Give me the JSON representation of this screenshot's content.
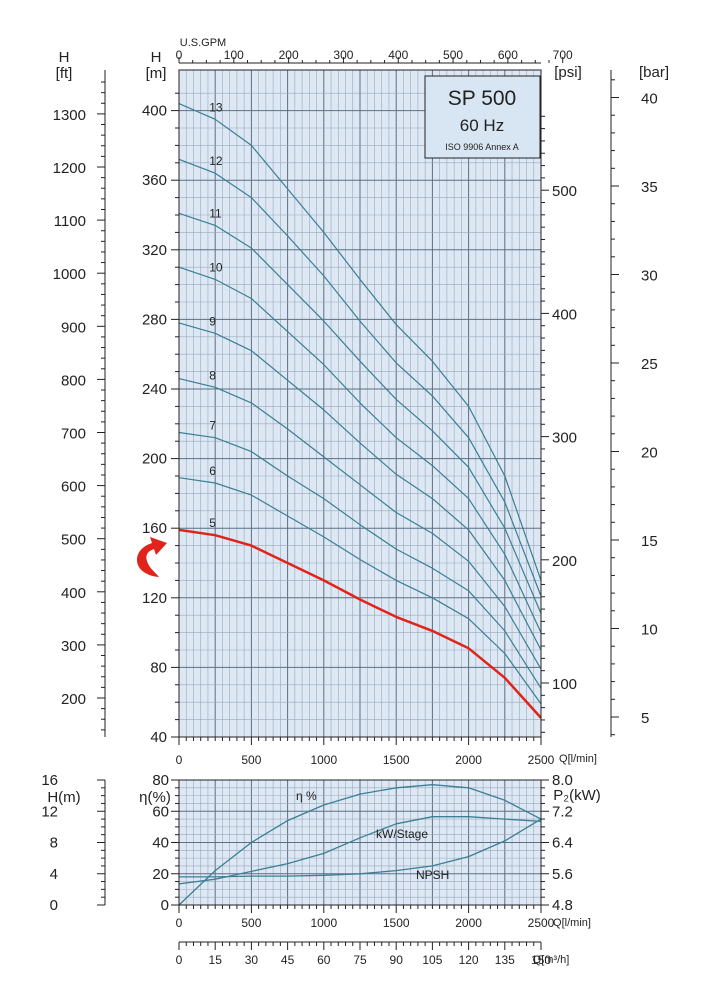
{
  "chart_data": [
    {
      "type": "line",
      "title_box": {
        "model": "SP 500",
        "frequency": "60 Hz",
        "standard": "ISO 9906 Annex A"
      },
      "x_axis": {
        "label": "Q[l/min]",
        "range": [
          0,
          2500
        ],
        "ticks": [
          "0",
          "500",
          "1000",
          "1500",
          "2000",
          "2500"
        ]
      },
      "top_axis": {
        "label": "U.S.GPM",
        "range": [
          0,
          700
        ],
        "ticks": [
          "0",
          "100",
          "200",
          "300",
          "400",
          "500",
          "600",
          "700"
        ]
      },
      "y_axis_m": {
        "label": "H\n[m]",
        "range": [
          40,
          410
        ],
        "ticks": [
          "40",
          "80",
          "120",
          "160",
          "200",
          "240",
          "280",
          "320",
          "360",
          "400"
        ]
      },
      "y_axis_ft": {
        "label": "H\n[ft]",
        "ticks": [
          "200",
          "300",
          "400",
          "500",
          "600",
          "700",
          "800",
          "900",
          "1000",
          "1100",
          "1200",
          "1300"
        ]
      },
      "y_axis_psi": {
        "label": "[psi]",
        "ticks": [
          "100",
          "200",
          "300",
          "400",
          "500"
        ]
      },
      "y_axis_bar": {
        "label": "[bar]",
        "ticks": [
          "5",
          "10",
          "15",
          "20",
          "25",
          "30",
          "35",
          "40"
        ]
      },
      "grid": true,
      "highlight_stage": "5",
      "highlight_color": "#e0241b",
      "curve_color": "#3a7f93",
      "x": [
        0,
        250,
        500,
        750,
        1000,
        1250,
        1500,
        1750,
        2000,
        2250,
        2500
      ],
      "series": [
        {
          "name": "5",
          "values": [
            159,
            156,
            150,
            140,
            130,
            119,
            109,
            101,
            91,
            74,
            51
          ]
        },
        {
          "name": "6",
          "values": [
            189,
            186,
            179,
            167,
            155,
            142,
            130,
            120,
            108,
            88,
            59
          ]
        },
        {
          "name": "7",
          "values": [
            215,
            212,
            204,
            190,
            177,
            162,
            148,
            137,
            124,
            101,
            68
          ]
        },
        {
          "name": "8",
          "values": [
            246,
            241,
            232,
            217,
            201,
            185,
            169,
            157,
            141,
            115,
            79
          ]
        },
        {
          "name": "9",
          "values": [
            278,
            272,
            262,
            245,
            228,
            209,
            191,
            177,
            159,
            130,
            90
          ]
        },
        {
          "name": "10",
          "values": [
            310,
            303,
            292,
            273,
            254,
            232,
            212,
            196,
            177,
            145,
            100
          ]
        },
        {
          "name": "11",
          "values": [
            341,
            334,
            321,
            300,
            279,
            256,
            234,
            216,
            195,
            160,
            111
          ]
        },
        {
          "name": "12",
          "values": [
            372,
            364,
            350,
            328,
            305,
            279,
            255,
            236,
            212,
            175,
            121
          ]
        },
        {
          "name": "13",
          "values": [
            404,
            395,
            380,
            355,
            330,
            303,
            277,
            256,
            230,
            190,
            130
          ]
        }
      ]
    },
    {
      "type": "line",
      "x_axis": {
        "label": "Q[l/min]",
        "range": [
          0,
          2500
        ],
        "ticks": [
          "0",
          "500",
          "1000",
          "1500",
          "2000",
          "2500"
        ]
      },
      "x_axis_m3h": {
        "label": "Q[m³/h]",
        "range": [
          0,
          150
        ],
        "ticks": [
          "0",
          "15",
          "30",
          "45",
          "60",
          "75",
          "90",
          "105",
          "120",
          "135",
          "150"
        ]
      },
      "y_axis_npsh": {
        "label": "H(m)",
        "range": [
          0,
          16
        ],
        "ticks": [
          "0",
          "4",
          "8",
          "12",
          "16"
        ]
      },
      "y_axis_eff": {
        "label": "η(%)",
        "range": [
          0,
          80
        ],
        "ticks": [
          "0",
          "20",
          "40",
          "60",
          "80"
        ]
      },
      "y_axis_power": {
        "label": "P₂(kW)",
        "range": [
          4.8,
          8.0
        ],
        "ticks": [
          "4.8",
          "5.6",
          "6.4",
          "7.2",
          "8.0"
        ]
      },
      "grid": true,
      "x": [
        0,
        250,
        500,
        750,
        1000,
        1250,
        1500,
        1750,
        2000,
        2250,
        2500
      ],
      "series": [
        {
          "name": "η %",
          "axis": "eff_pct",
          "values": [
            0,
            22,
            40,
            54,
            64,
            71,
            75,
            77,
            75,
            67,
            55
          ]
        },
        {
          "name": "kW/Stage",
          "axis": "power_kw",
          "values": [
            5.34,
            5.46,
            5.66,
            5.86,
            6.12,
            6.52,
            6.88,
            7.06,
            7.06,
            7.0,
            6.94
          ]
        },
        {
          "name": "NPSH",
          "axis": "npsh_m",
          "values": [
            3.6,
            3.6,
            3.7,
            3.7,
            3.8,
            4.0,
            4.4,
            5.0,
            6.2,
            8.2,
            11.0
          ]
        }
      ]
    }
  ]
}
